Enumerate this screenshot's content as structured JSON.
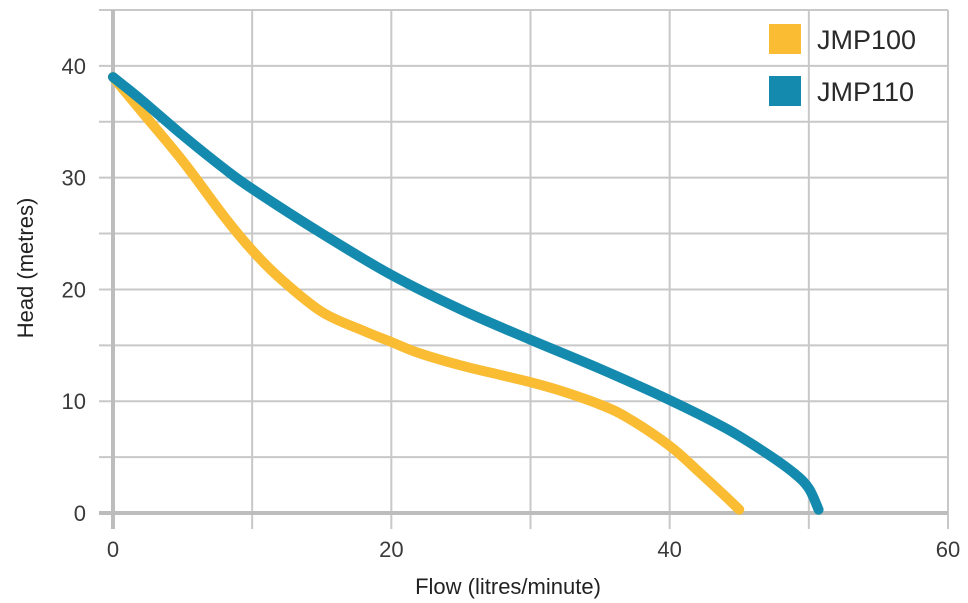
{
  "chart_data": {
    "type": "line",
    "title": "",
    "xlabel": "Flow (litres/minute)",
    "ylabel": "Head (metres)",
    "xlim": [
      0,
      60
    ],
    "ylim": [
      0,
      45
    ],
    "x_ticks": [
      "0",
      "20",
      "40",
      "60"
    ],
    "y_ticks": [
      "0",
      "10",
      "20",
      "30",
      "40"
    ],
    "x_gridlines": [
      0,
      10,
      20,
      30,
      40,
      50,
      60
    ],
    "y_gridlines": [
      0,
      5,
      10,
      15,
      20,
      25,
      30,
      35,
      40,
      45
    ],
    "grid": true,
    "legend_position": "top-right",
    "series": [
      {
        "name": "JMP100",
        "color": "#F9BC33",
        "x": [
          0,
          2,
          5,
          8,
          10,
          12,
          15,
          18,
          20,
          22,
          25,
          28,
          30,
          32,
          35,
          37,
          40,
          42,
          44,
          45
        ],
        "y": [
          39,
          36,
          31.5,
          26.5,
          23.5,
          21,
          18,
          16.3,
          15.3,
          14.3,
          13.2,
          12.3,
          11.7,
          11,
          9.7,
          8.5,
          6,
          3.8,
          1.5,
          0.3
        ]
      },
      {
        "name": "JMP110",
        "color": "#148BAE",
        "x": [
          0,
          2,
          5,
          8,
          10,
          15,
          20,
          25,
          30,
          35,
          40,
          44,
          47,
          49,
          50,
          50.7
        ],
        "y": [
          39,
          37,
          33.8,
          30.8,
          29,
          25,
          21.3,
          18.2,
          15.5,
          12.9,
          10.1,
          7.6,
          5.3,
          3.5,
          2.2,
          0.3
        ]
      }
    ]
  }
}
